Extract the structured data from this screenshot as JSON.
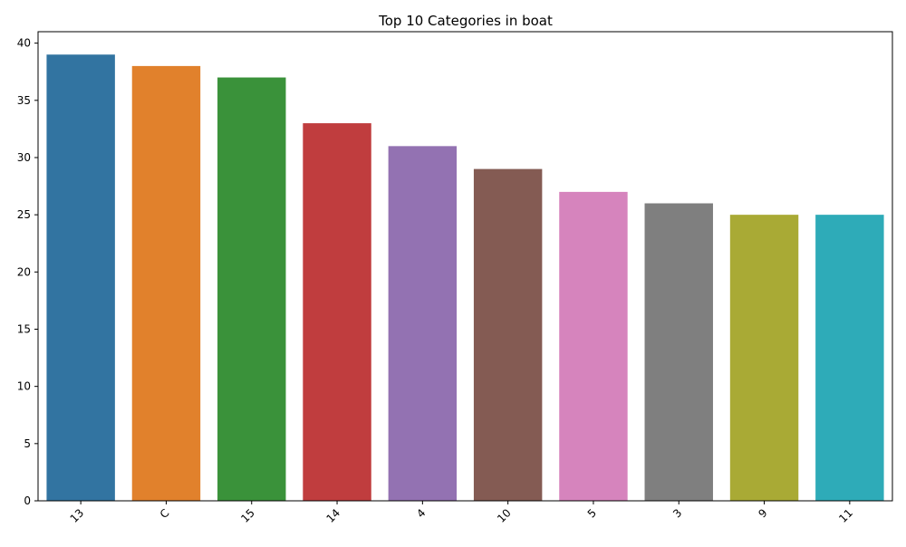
{
  "chart_data": {
    "type": "bar",
    "title": "Top 10 Categories in boat",
    "xlabel": "",
    "ylabel": "",
    "categories": [
      "13",
      "C",
      "15",
      "14",
      "4",
      "10",
      "5",
      "3",
      "9",
      "11"
    ],
    "values": [
      39,
      38,
      37,
      33,
      31,
      29,
      27,
      26,
      25,
      25
    ],
    "colors": [
      "#3274a1",
      "#e1812c",
      "#3a923a",
      "#c03d3e",
      "#9372b2",
      "#845b53",
      "#d684bd",
      "#7f7f7f",
      "#a9aa35",
      "#2eabb8"
    ],
    "ylim": [
      0,
      41
    ],
    "yticks": [
      0,
      5,
      10,
      15,
      20,
      25,
      30,
      35,
      40
    ],
    "grid": false,
    "legend": "none"
  }
}
